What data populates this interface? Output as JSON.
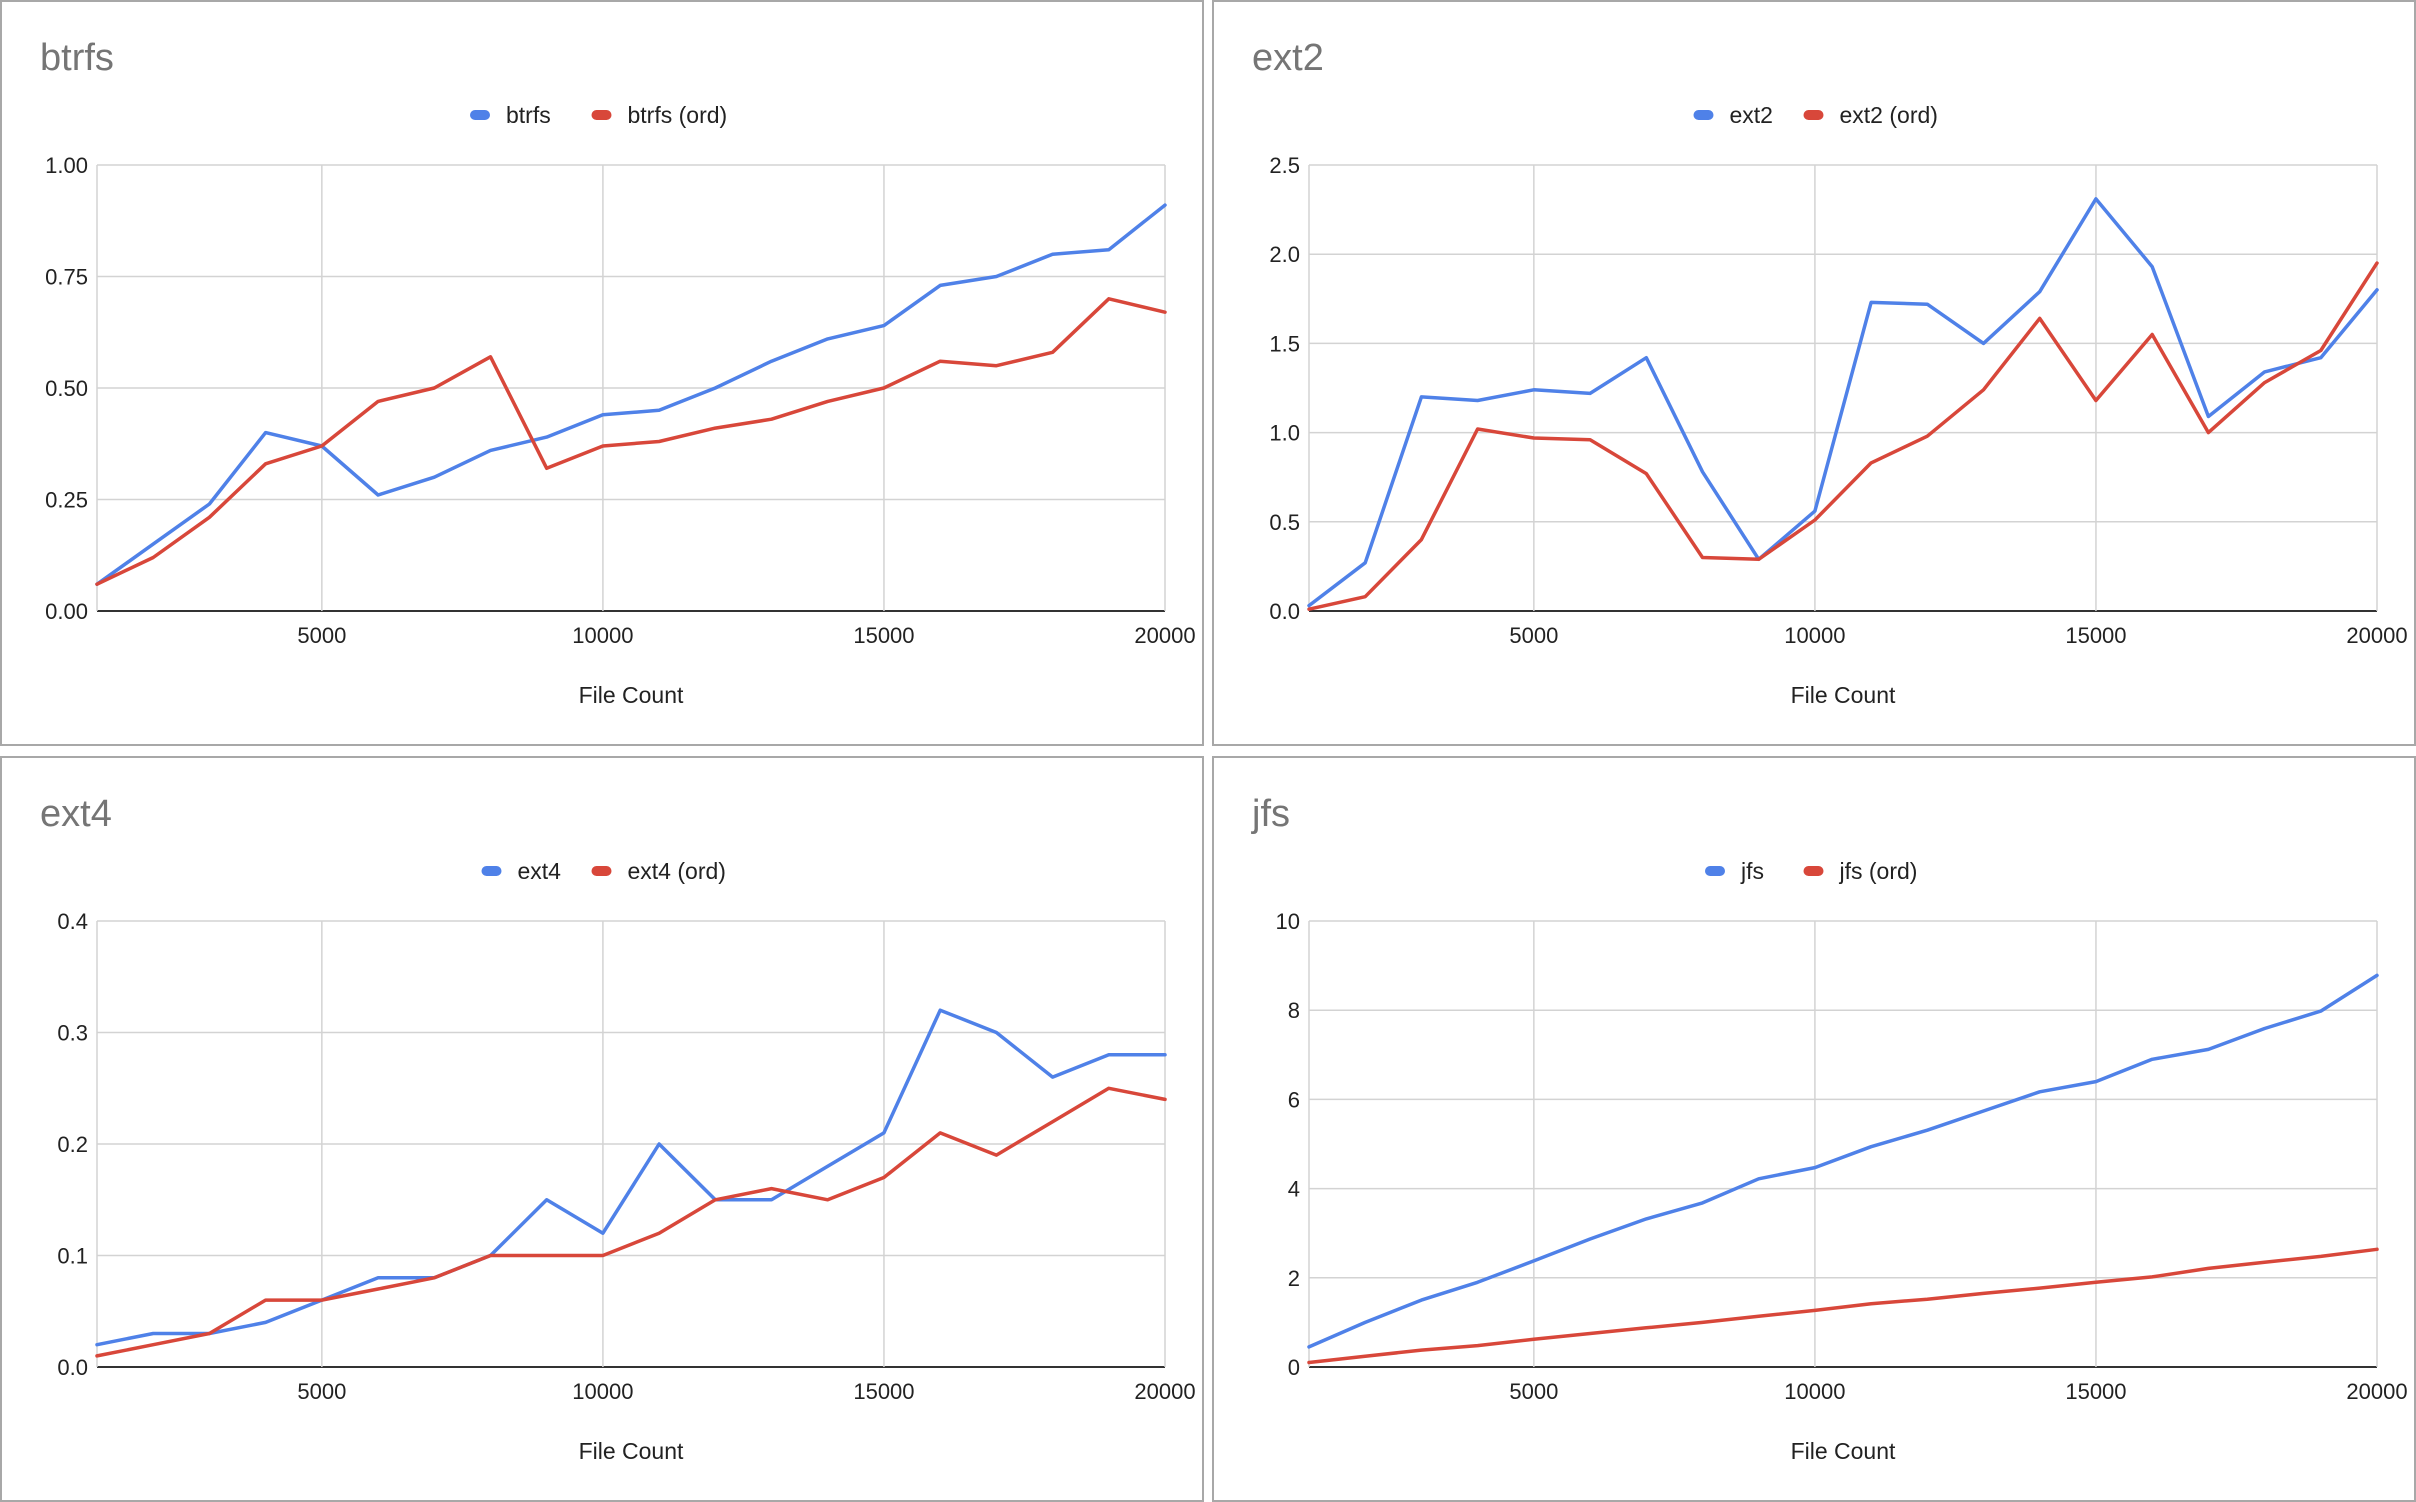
{
  "colors": {
    "series1": "#4f81e8",
    "series2": "#d8473a",
    "grid": "#d3d3d3",
    "title": "#757575",
    "text": "#222222"
  },
  "chart_data": [
    {
      "type": "line",
      "title": "btrfs",
      "xlabel": "File Count",
      "ylabel": "",
      "xlim": [
        1000,
        20000
      ],
      "ylim": [
        0,
        1
      ],
      "xticks": [
        "5000",
        "10000",
        "15000",
        "20000"
      ],
      "yticks": [
        "0.00",
        "0.25",
        "0.50",
        "0.75",
        "1.00"
      ],
      "legend": "top-center",
      "grid": true,
      "x": [
        1000,
        2000,
        3000,
        4000,
        5000,
        6000,
        7000,
        8000,
        9000,
        10000,
        11000,
        12000,
        13000,
        14000,
        15000,
        16000,
        17000,
        18000,
        19000,
        20000
      ],
      "series": [
        {
          "name": "btrfs",
          "values": [
            0.06,
            0.15,
            0.24,
            0.4,
            0.37,
            0.26,
            0.3,
            0.36,
            0.39,
            0.44,
            0.45,
            0.5,
            0.56,
            0.61,
            0.64,
            0.73,
            0.75,
            0.8,
            0.81,
            0.91
          ]
        },
        {
          "name": "btrfs (ord)",
          "values": [
            0.06,
            0.12,
            0.21,
            0.33,
            0.37,
            0.47,
            0.5,
            0.57,
            0.32,
            0.37,
            0.38,
            0.41,
            0.43,
            0.47,
            0.5,
            0.56,
            0.55,
            0.58,
            0.7,
            0.67
          ]
        }
      ]
    },
    {
      "type": "line",
      "title": "ext2",
      "xlabel": "File Count",
      "ylabel": "",
      "xlim": [
        1000,
        20000
      ],
      "ylim": [
        0,
        2.5
      ],
      "xticks": [
        "5000",
        "10000",
        "15000",
        "20000"
      ],
      "yticks": [
        "0.0",
        "0.5",
        "1.0",
        "1.5",
        "2.0",
        "2.5"
      ],
      "legend": "top-center",
      "grid": true,
      "x": [
        1000,
        2000,
        3000,
        4000,
        5000,
        6000,
        7000,
        8000,
        9000,
        10000,
        11000,
        12000,
        13000,
        14000,
        15000,
        16000,
        17000,
        18000,
        19000,
        20000
      ],
      "series": [
        {
          "name": "ext2",
          "values": [
            0.03,
            0.27,
            1.2,
            1.18,
            1.24,
            1.22,
            1.42,
            0.78,
            0.29,
            0.56,
            1.73,
            1.72,
            1.5,
            1.79,
            2.31,
            1.93,
            1.09,
            1.34,
            1.42,
            1.8
          ]
        },
        {
          "name": "ext2 (ord)",
          "values": [
            0.01,
            0.08,
            0.4,
            1.02,
            0.97,
            0.96,
            0.77,
            0.3,
            0.29,
            0.51,
            0.83,
            0.98,
            1.24,
            1.64,
            1.18,
            1.55,
            1.0,
            1.28,
            1.46,
            1.95
          ]
        }
      ]
    },
    {
      "type": "line",
      "title": "ext4",
      "xlabel": "File Count",
      "ylabel": "",
      "xlim": [
        1000,
        20000
      ],
      "ylim": [
        0,
        0.4
      ],
      "xticks": [
        "5000",
        "10000",
        "15000",
        "20000"
      ],
      "yticks": [
        "0.0",
        "0.1",
        "0.2",
        "0.3",
        "0.4"
      ],
      "legend": "top-center",
      "grid": true,
      "x": [
        1000,
        2000,
        3000,
        4000,
        5000,
        6000,
        7000,
        8000,
        9000,
        10000,
        11000,
        12000,
        13000,
        14000,
        15000,
        16000,
        17000,
        18000,
        19000,
        20000
      ],
      "series": [
        {
          "name": "ext4",
          "values": [
            0.02,
            0.03,
            0.03,
            0.04,
            0.06,
            0.08,
            0.08,
            0.1,
            0.15,
            0.12,
            0.2,
            0.15,
            0.15,
            0.18,
            0.21,
            0.32,
            0.3,
            0.26,
            0.28,
            0.28
          ]
        },
        {
          "name": "ext4 (ord)",
          "values": [
            0.01,
            0.02,
            0.03,
            0.06,
            0.06,
            0.07,
            0.08,
            0.1,
            0.1,
            0.1,
            0.12,
            0.15,
            0.16,
            0.15,
            0.17,
            0.21,
            0.19,
            0.22,
            0.25,
            0.24
          ]
        }
      ]
    },
    {
      "type": "line",
      "title": "jfs",
      "xlabel": "File Count",
      "ylabel": "",
      "xlim": [
        1000,
        20000
      ],
      "ylim": [
        0,
        10
      ],
      "xticks": [
        "5000",
        "10000",
        "15000",
        "20000"
      ],
      "yticks": [
        "0",
        "2",
        "4",
        "6",
        "8",
        "10"
      ],
      "legend": "top-center",
      "grid": true,
      "x": [
        1000,
        2000,
        3000,
        4000,
        5000,
        6000,
        7000,
        8000,
        9000,
        10000,
        11000,
        12000,
        13000,
        14000,
        15000,
        16000,
        17000,
        18000,
        19000,
        20000
      ],
      "series": [
        {
          "name": "jfs",
          "values": [
            0.45,
            1.0,
            1.5,
            1.9,
            2.38,
            2.87,
            3.32,
            3.68,
            4.22,
            4.47,
            4.94,
            5.31,
            5.74,
            6.17,
            6.4,
            6.9,
            7.12,
            7.59,
            7.98,
            8.78
          ]
        },
        {
          "name": "jfs (ord)",
          "values": [
            0.1,
            0.24,
            0.38,
            0.48,
            0.62,
            0.75,
            0.88,
            1.0,
            1.14,
            1.27,
            1.42,
            1.52,
            1.65,
            1.77,
            1.9,
            2.02,
            2.21,
            2.35,
            2.48,
            2.64
          ]
        }
      ]
    }
  ]
}
